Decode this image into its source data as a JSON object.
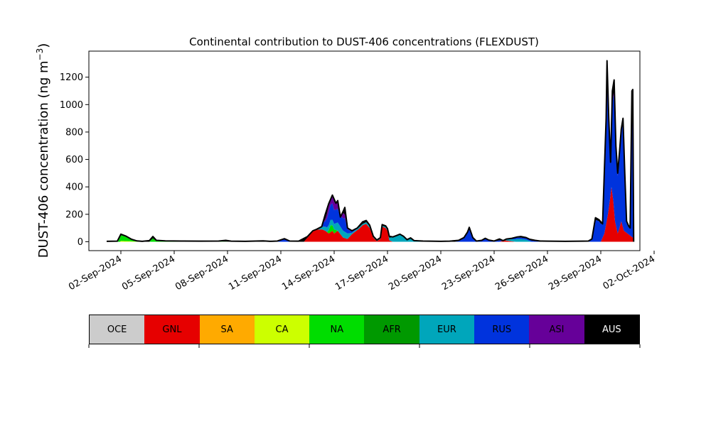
{
  "chart_data": {
    "type": "area",
    "stacked": true,
    "title": "Continental contribution to DUST-406 concentrations (FLEXDUST)",
    "ylabel": "DUST-406 concentration (ng m",
    "ylabel_sup": "−3",
    "ylabel_close": ")",
    "xlabel": "",
    "x_start": "2024-09-01",
    "xlim_days": [
      -0.8,
      30.2
    ],
    "ylim": [
      -65,
      1390
    ],
    "yticks": [
      "0",
      "200",
      "400",
      "600",
      "800",
      "1000",
      "1200"
    ],
    "ytick_values": [
      0,
      200,
      400,
      600,
      800,
      1000,
      1200
    ],
    "xticks": [
      "02-Sep-2024",
      "05-Sep-2024",
      "08-Sep-2024",
      "11-Sep-2024",
      "14-Sep-2024",
      "17-Sep-2024",
      "20-Sep-2024",
      "23-Sep-2024",
      "26-Sep-2024",
      "29-Sep-2024",
      "02-Oct-2024"
    ],
    "xtick_values": [
      1,
      4,
      7,
      10,
      13,
      16,
      19,
      22,
      25,
      28,
      31
    ],
    "grid": false,
    "total": [
      [
        0.2,
        3
      ],
      [
        0.8,
        4
      ],
      [
        1.0,
        55
      ],
      [
        1.3,
        40
      ],
      [
        1.6,
        18
      ],
      [
        1.9,
        6
      ],
      [
        2.2,
        3
      ],
      [
        2.6,
        8
      ],
      [
        2.8,
        38
      ],
      [
        3.0,
        10
      ],
      [
        3.5,
        6
      ],
      [
        4.5,
        5
      ],
      [
        5.5,
        4
      ],
      [
        6.5,
        5
      ],
      [
        6.9,
        10
      ],
      [
        7.2,
        4
      ],
      [
        8.0,
        3
      ],
      [
        9.0,
        6
      ],
      [
        9.4,
        3
      ],
      [
        9.8,
        5
      ],
      [
        10.2,
        22
      ],
      [
        10.5,
        5
      ],
      [
        11.0,
        4
      ],
      [
        11.5,
        38
      ],
      [
        11.8,
        80
      ],
      [
        12.0,
        90
      ],
      [
        12.3,
        110
      ],
      [
        12.5,
        200
      ],
      [
        12.7,
        280
      ],
      [
        12.9,
        340
      ],
      [
        13.0,
        310
      ],
      [
        13.1,
        280
      ],
      [
        13.2,
        300
      ],
      [
        13.35,
        180
      ],
      [
        13.5,
        220
      ],
      [
        13.6,
        250
      ],
      [
        13.75,
        100
      ],
      [
        14.0,
        80
      ],
      [
        14.3,
        100
      ],
      [
        14.6,
        145
      ],
      [
        14.8,
        155
      ],
      [
        15.0,
        120
      ],
      [
        15.2,
        40
      ],
      [
        15.4,
        12
      ],
      [
        15.6,
        30
      ],
      [
        15.7,
        125
      ],
      [
        15.9,
        115
      ],
      [
        16.0,
        95
      ],
      [
        16.1,
        40
      ],
      [
        16.3,
        35
      ],
      [
        16.5,
        45
      ],
      [
        16.7,
        55
      ],
      [
        16.9,
        40
      ],
      [
        17.1,
        15
      ],
      [
        17.3,
        28
      ],
      [
        17.5,
        8
      ],
      [
        18.0,
        5
      ],
      [
        19.0,
        3
      ],
      [
        19.5,
        4
      ],
      [
        20.0,
        10
      ],
      [
        20.3,
        30
      ],
      [
        20.5,
        70
      ],
      [
        20.6,
        105
      ],
      [
        20.8,
        30
      ],
      [
        21.0,
        5
      ],
      [
        21.3,
        10
      ],
      [
        21.5,
        25
      ],
      [
        21.7,
        12
      ],
      [
        22.0,
        5
      ],
      [
        22.3,
        20
      ],
      [
        22.5,
        8
      ],
      [
        22.7,
        20
      ],
      [
        23.0,
        25
      ],
      [
        23.3,
        35
      ],
      [
        23.5,
        38
      ],
      [
        23.8,
        30
      ],
      [
        24.0,
        18
      ],
      [
        24.3,
        10
      ],
      [
        24.6,
        5
      ],
      [
        25.0,
        4
      ],
      [
        26.0,
        3
      ],
      [
        27.0,
        4
      ],
      [
        27.3,
        5
      ],
      [
        27.5,
        20
      ],
      [
        27.7,
        175
      ],
      [
        27.9,
        160
      ],
      [
        28.1,
        130
      ],
      [
        28.3,
        900
      ],
      [
        28.35,
        1320
      ],
      [
        28.45,
        900
      ],
      [
        28.55,
        580
      ],
      [
        28.65,
        1100
      ],
      [
        28.75,
        1180
      ],
      [
        28.85,
        700
      ],
      [
        28.95,
        500
      ],
      [
        29.05,
        650
      ],
      [
        29.15,
        820
      ],
      [
        29.25,
        900
      ],
      [
        29.35,
        500
      ],
      [
        29.45,
        150
      ],
      [
        29.55,
        120
      ],
      [
        29.65,
        100
      ],
      [
        29.75,
        1100
      ],
      [
        29.8,
        1110
      ],
      [
        29.85,
        0
      ]
    ],
    "series": [
      {
        "name": "OCE",
        "color": "#cccccc",
        "values": []
      },
      {
        "name": "GNL",
        "color": "#e60000",
        "values": [
          [
            11.3,
            0
          ],
          [
            11.8,
            75
          ],
          [
            12.0,
            88
          ],
          [
            12.3,
            90
          ],
          [
            12.5,
            80
          ],
          [
            12.7,
            60
          ],
          [
            12.9,
            80
          ],
          [
            13.0,
            60
          ],
          [
            13.2,
            80
          ],
          [
            13.5,
            30
          ],
          [
            13.75,
            20
          ],
          [
            14.0,
            55
          ],
          [
            14.4,
            95
          ],
          [
            14.6,
            120
          ],
          [
            14.8,
            130
          ],
          [
            15.0,
            100
          ],
          [
            15.2,
            30
          ],
          [
            15.4,
            5
          ],
          [
            15.6,
            20
          ],
          [
            15.7,
            110
          ],
          [
            15.9,
            100
          ],
          [
            16.0,
            80
          ],
          [
            16.1,
            10
          ],
          [
            16.3,
            0
          ],
          [
            22.3,
            0
          ],
          [
            22.6,
            10
          ],
          [
            22.9,
            5
          ],
          [
            23.2,
            0
          ],
          [
            28.0,
            0
          ],
          [
            28.2,
            60
          ],
          [
            28.4,
            200
          ],
          [
            28.5,
            290
          ],
          [
            28.6,
            400
          ],
          [
            28.7,
            300
          ],
          [
            28.8,
            150
          ],
          [
            28.95,
            60
          ],
          [
            29.05,
            100
          ],
          [
            29.15,
            150
          ],
          [
            29.3,
            80
          ],
          [
            29.5,
            60
          ],
          [
            29.7,
            40
          ],
          [
            29.8,
            30
          ],
          [
            29.85,
            0
          ]
        ]
      },
      {
        "name": "SA",
        "color": "#ffaa00",
        "values": []
      },
      {
        "name": "CA",
        "color": "#ccff00",
        "values": [
          [
            1.0,
            6
          ],
          [
            1.5,
            4
          ],
          [
            2.0,
            0
          ]
        ]
      },
      {
        "name": "NA",
        "color": "#00dd00",
        "values": [
          [
            0.8,
            0
          ],
          [
            1.0,
            40
          ],
          [
            1.3,
            30
          ],
          [
            1.6,
            12
          ],
          [
            1.9,
            3
          ],
          [
            2.2,
            0
          ],
          [
            2.6,
            0
          ],
          [
            2.8,
            25
          ],
          [
            3.0,
            5
          ],
          [
            3.5,
            3
          ],
          [
            4.5,
            2
          ],
          [
            5.5,
            1
          ],
          [
            6.5,
            2
          ],
          [
            7.2,
            0
          ],
          [
            12.6,
            0
          ],
          [
            12.8,
            50
          ],
          [
            13.0,
            30
          ],
          [
            13.2,
            0
          ]
        ]
      },
      {
        "name": "AFR",
        "color": "#009900",
        "values": [
          [
            1.0,
            5
          ],
          [
            1.5,
            3
          ],
          [
            2.0,
            0
          ]
        ]
      },
      {
        "name": "EUR",
        "color": "#00a6bb",
        "values": [
          [
            11.8,
            0
          ],
          [
            12.2,
            15
          ],
          [
            12.5,
            30
          ],
          [
            12.8,
            40
          ],
          [
            13.0,
            40
          ],
          [
            13.2,
            60
          ],
          [
            13.5,
            50
          ],
          [
            13.75,
            40
          ],
          [
            14.0,
            10
          ],
          [
            14.6,
            10
          ],
          [
            15.0,
            15
          ],
          [
            15.2,
            10
          ],
          [
            15.6,
            5
          ],
          [
            16.0,
            10
          ],
          [
            16.3,
            35
          ],
          [
            16.5,
            40
          ],
          [
            16.7,
            50
          ],
          [
            16.9,
            35
          ],
          [
            17.1,
            10
          ],
          [
            17.3,
            25
          ],
          [
            17.5,
            5
          ],
          [
            18.0,
            0
          ],
          [
            22.5,
            0
          ],
          [
            22.8,
            10
          ],
          [
            23.3,
            20
          ],
          [
            23.5,
            20
          ],
          [
            23.8,
            15
          ],
          [
            24.1,
            0
          ]
        ]
      },
      {
        "name": "RUS",
        "color": "#0033dd",
        "values": [
          [
            9.8,
            0
          ],
          [
            10.2,
            18
          ],
          [
            10.5,
            2
          ],
          [
            11.0,
            0
          ],
          [
            12.0,
            0
          ],
          [
            12.5,
            40
          ],
          [
            12.7,
            100
          ],
          [
            12.9,
            120
          ],
          [
            13.0,
            100
          ],
          [
            13.2,
            100
          ],
          [
            13.35,
            80
          ],
          [
            13.5,
            90
          ],
          [
            13.6,
            100
          ],
          [
            13.75,
            30
          ],
          [
            14.0,
            10
          ],
          [
            14.3,
            0
          ],
          [
            19.8,
            0
          ],
          [
            20.0,
            5
          ],
          [
            20.3,
            25
          ],
          [
            20.5,
            60
          ],
          [
            20.6,
            95
          ],
          [
            20.8,
            25
          ],
          [
            21.0,
            3
          ],
          [
            21.3,
            8
          ],
          [
            21.5,
            20
          ],
          [
            21.7,
            8
          ],
          [
            22.0,
            3
          ],
          [
            22.3,
            10
          ],
          [
            22.5,
            5
          ],
          [
            22.7,
            8
          ],
          [
            23.0,
            10
          ],
          [
            23.3,
            10
          ],
          [
            23.5,
            10
          ],
          [
            23.8,
            10
          ],
          [
            24.0,
            10
          ],
          [
            24.3,
            5
          ],
          [
            24.6,
            0
          ],
          [
            27.3,
            0
          ],
          [
            27.5,
            15
          ],
          [
            27.7,
            160
          ],
          [
            27.9,
            150
          ],
          [
            28.1,
            110
          ],
          [
            28.3,
            800
          ],
          [
            28.35,
            1180
          ],
          [
            28.45,
            720
          ],
          [
            28.55,
            380
          ],
          [
            28.65,
            650
          ],
          [
            28.75,
            850
          ],
          [
            28.85,
            530
          ],
          [
            28.95,
            420
          ],
          [
            29.05,
            530
          ],
          [
            29.15,
            650
          ],
          [
            29.25,
            760
          ],
          [
            29.35,
            410
          ],
          [
            29.45,
            80
          ],
          [
            29.55,
            50
          ],
          [
            29.65,
            55
          ],
          [
            29.75,
            1040
          ],
          [
            29.8,
            1060
          ],
          [
            29.85,
            0
          ]
        ]
      },
      {
        "name": "ASI",
        "color": "#660099",
        "values": [
          [
            12.4,
            0
          ],
          [
            12.7,
            50
          ],
          [
            12.9,
            80
          ],
          [
            13.0,
            60
          ],
          [
            13.2,
            40
          ],
          [
            13.5,
            40
          ],
          [
            13.75,
            5
          ],
          [
            14.0,
            0
          ],
          [
            28.2,
            0
          ],
          [
            28.35,
            30
          ],
          [
            28.5,
            20
          ],
          [
            28.7,
            20
          ],
          [
            29.0,
            10
          ],
          [
            29.3,
            0
          ]
        ]
      },
      {
        "name": "AUS",
        "color": "#000000",
        "values": []
      }
    ],
    "legend": {
      "placement": "bottom",
      "entries": [
        "OCE",
        "GNL",
        "SA",
        "CA",
        "NA",
        "AFR",
        "EUR",
        "RUS",
        "ASI",
        "AUS"
      ],
      "colors": [
        "#cccccc",
        "#e60000",
        "#ffaa00",
        "#ccff00",
        "#00dd00",
        "#009900",
        "#00a6bb",
        "#0033dd",
        "#660099",
        "#000000"
      ],
      "dark_text": [
        "AUS"
      ]
    }
  }
}
